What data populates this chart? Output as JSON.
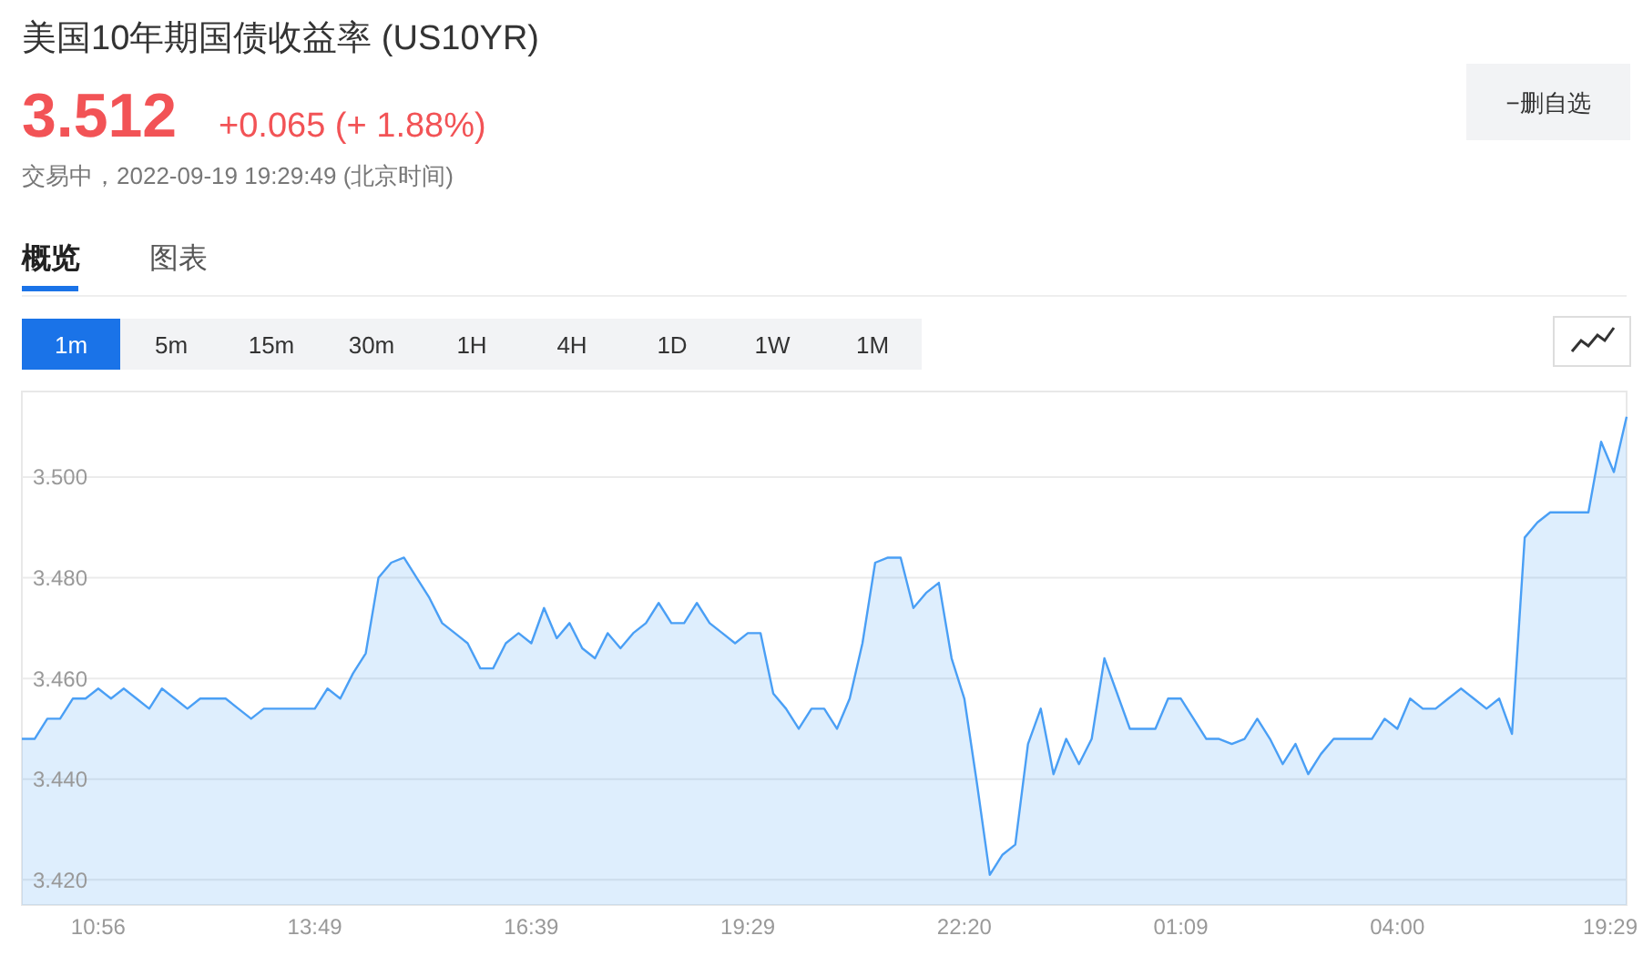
{
  "chart_data": {
    "type": "area",
    "title": "美国10年期国债收益率  (US10YR)",
    "subtitle": "交易中，2022-09-19 19:29:49 (北京时间)",
    "annotations": [
      "3.512",
      "+0.065 (+ 1.88%)",
      "−删自选",
      "概览",
      "图表",
      "1m",
      "5m",
      "15m",
      "30m",
      "1H",
      "4H",
      "1D",
      "1W",
      "1M"
    ],
    "categories": [
      null,
      null,
      null,
      null,
      null,
      null,
      "10:56",
      null,
      null,
      null,
      null,
      null,
      null,
      null,
      null,
      null,
      null,
      null,
      null,
      null,
      null,
      null,
      null,
      "13:49",
      null,
      null,
      null,
      null,
      null,
      null,
      null,
      null,
      null,
      null,
      null,
      null,
      null,
      null,
      null,
      null,
      "16:39",
      null,
      null,
      null,
      null,
      null,
      null,
      null,
      null,
      null,
      null,
      null,
      null,
      null,
      null,
      null,
      null,
      "19:29",
      null,
      null,
      null,
      null,
      null,
      null,
      null,
      null,
      null,
      null,
      null,
      null,
      null,
      null,
      null,
      null,
      "22:20",
      null,
      null,
      null,
      null,
      null,
      null,
      null,
      null,
      null,
      null,
      null,
      null,
      null,
      null,
      null,
      null,
      "01:09",
      null,
      null,
      null,
      null,
      null,
      null,
      null,
      null,
      null,
      null,
      null,
      null,
      null,
      null,
      null,
      null,
      "04:00",
      null,
      null,
      null,
      null,
      null,
      null,
      null,
      null,
      null,
      null,
      null,
      null,
      null,
      null,
      null,
      null,
      "19:29",
      null
    ],
    "values": [
      3.448,
      3.448,
      3.452,
      3.452,
      3.456,
      3.456,
      3.458,
      3.456,
      3.458,
      3.456,
      3.454,
      3.458,
      3.456,
      3.454,
      3.456,
      3.456,
      3.456,
      3.454,
      3.452,
      3.454,
      3.454,
      3.454,
      3.454,
      3.454,
      3.458,
      3.456,
      3.461,
      3.465,
      3.48,
      3.483,
      3.484,
      3.48,
      3.476,
      3.471,
      3.469,
      3.467,
      3.462,
      3.462,
      3.467,
      3.469,
      3.467,
      3.474,
      3.468,
      3.471,
      3.466,
      3.464,
      3.469,
      3.466,
      3.469,
      3.471,
      3.475,
      3.471,
      3.471,
      3.475,
      3.471,
      3.469,
      3.467,
      3.469,
      3.469,
      3.457,
      3.454,
      3.45,
      3.454,
      3.454,
      3.45,
      3.456,
      3.467,
      3.483,
      3.484,
      3.484,
      3.474,
      3.477,
      3.479,
      3.464,
      3.456,
      3.439,
      3.421,
      3.425,
      3.427,
      3.447,
      3.454,
      3.441,
      3.448,
      3.443,
      3.448,
      3.464,
      3.457,
      3.45,
      3.45,
      3.45,
      3.456,
      3.456,
      3.452,
      3.448,
      3.448,
      3.447,
      3.448,
      3.452,
      3.448,
      3.443,
      3.447,
      3.441,
      3.445,
      3.448,
      3.448,
      3.448,
      3.448,
      3.452,
      3.45,
      3.456,
      3.454,
      3.454,
      3.456,
      3.458,
      3.456,
      3.454,
      3.456,
      3.449,
      3.488,
      3.491,
      3.493,
      3.493,
      3.493,
      3.493,
      3.507,
      3.501,
      3.512
    ],
    "color": "#4a9ff5",
    "ylim": [
      3.415,
      3.517
    ],
    "yticks": [
      {
        "value": 3.42,
        "label": "3.420"
      },
      {
        "value": 3.44,
        "label": "3.440"
      },
      {
        "value": 3.46,
        "label": "3.460"
      },
      {
        "value": 3.48,
        "label": "3.480"
      },
      {
        "value": 3.5,
        "label": "3.500"
      }
    ],
    "grid": "y",
    "marker": "none",
    "line_style": "solid"
  }
}
